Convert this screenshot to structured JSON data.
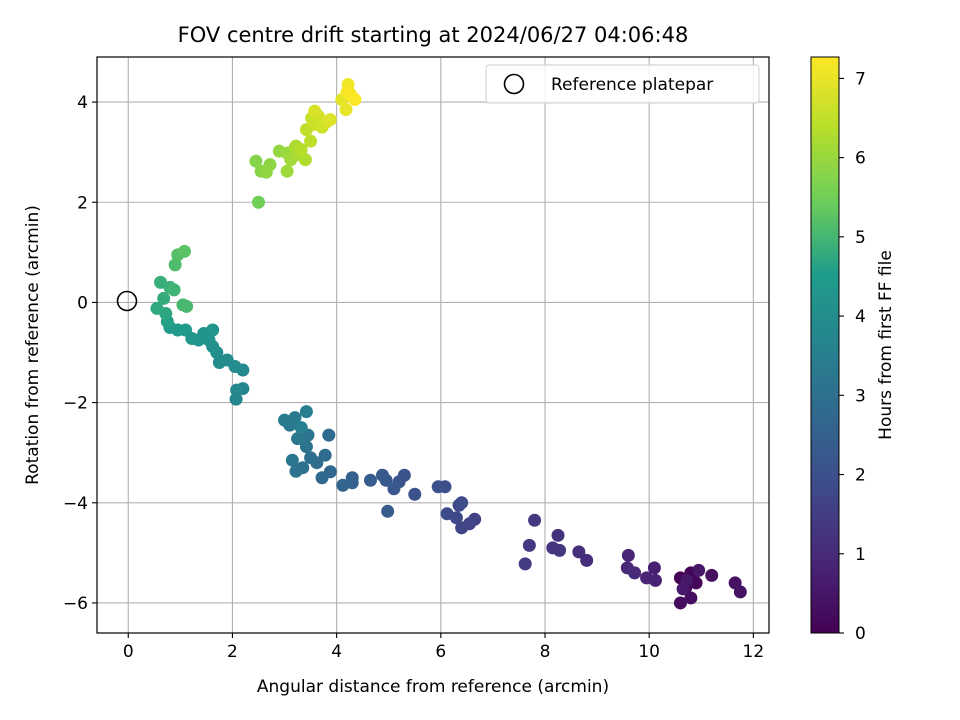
{
  "chart_data": {
    "type": "scatter",
    "title": "FOV centre drift starting at 2024/06/27 04:06:48",
    "xlabel": "Angular distance from reference (arcmin)",
    "ylabel": "Rotation from reference (arcmin)",
    "xlim": [
      -0.6,
      12.3
    ],
    "ylim": [
      -6.6,
      4.9
    ],
    "xticks": [
      0,
      2,
      4,
      6,
      8,
      10,
      12
    ],
    "yticks": [
      -6,
      -4,
      -2,
      0,
      2,
      4
    ],
    "xtick_labels": [
      "0",
      "2",
      "4",
      "6",
      "8",
      "10",
      "12"
    ],
    "ytick_labels": [
      "−6",
      "−4",
      "−2",
      "0",
      "2",
      "4"
    ],
    "grid": true,
    "legend": {
      "position": "top-right",
      "entries": [
        "Reference platepar"
      ]
    },
    "reference_point": {
      "x": 0,
      "y": 0,
      "label": "Reference platepar"
    },
    "colorbar": {
      "label": "Hours from first FF file",
      "range": [
        0,
        7.27
      ],
      "ticks": [
        0,
        1,
        2,
        3,
        4,
        5,
        6,
        7
      ],
      "tick_labels": [
        "0",
        "1",
        "2",
        "3",
        "4",
        "5",
        "6",
        "7"
      ],
      "colormap": "viridis"
    },
    "points": [
      [
        10.6,
        -5.5,
        0.05
      ],
      [
        10.8,
        -5.4,
        0.1
      ],
      [
        10.9,
        -5.6,
        0.15
      ],
      [
        10.7,
        -5.7,
        0.2
      ],
      [
        10.6,
        -6.0,
        0.25
      ],
      [
        10.8,
        -5.9,
        0.3
      ],
      [
        11.2,
        -5.45,
        0.35
      ],
      [
        11.65,
        -5.6,
        0.4
      ],
      [
        11.75,
        -5.78,
        0.45
      ],
      [
        10.95,
        -5.35,
        0.5
      ],
      [
        10.72,
        -5.55,
        0.55
      ],
      [
        10.65,
        -5.72,
        0.6
      ],
      [
        10.1,
        -5.3,
        0.75
      ],
      [
        10.12,
        -5.55,
        0.8
      ],
      [
        9.95,
        -5.5,
        0.85
      ],
      [
        9.6,
        -5.05,
        0.9
      ],
      [
        9.58,
        -5.3,
        0.95
      ],
      [
        9.72,
        -5.4,
        1.0
      ],
      [
        8.8,
        -5.15,
        1.1
      ],
      [
        8.65,
        -4.98,
        1.15
      ],
      [
        8.25,
        -4.65,
        1.2
      ],
      [
        8.15,
        -4.9,
        1.25
      ],
      [
        8.28,
        -4.95,
        1.3
      ],
      [
        7.8,
        -4.35,
        1.35
      ],
      [
        7.7,
        -4.85,
        1.4
      ],
      [
        7.62,
        -5.22,
        1.45
      ],
      [
        6.65,
        -4.33,
        1.6
      ],
      [
        6.55,
        -4.42,
        1.65
      ],
      [
        6.4,
        -4.5,
        1.7
      ],
      [
        6.35,
        -4.05,
        1.75
      ],
      [
        6.3,
        -4.3,
        1.8
      ],
      [
        6.12,
        -4.22,
        1.85
      ],
      [
        6.4,
        -4.0,
        1.9
      ],
      [
        6.08,
        -3.68,
        1.95
      ],
      [
        5.95,
        -3.68,
        2.0
      ],
      [
        5.5,
        -3.83,
        2.05
      ],
      [
        5.3,
        -3.45,
        2.1
      ],
      [
        5.2,
        -3.58,
        2.15
      ],
      [
        5.1,
        -3.72,
        2.2
      ],
      [
        4.95,
        -3.55,
        2.25
      ],
      [
        4.88,
        -3.45,
        2.3
      ],
      [
        4.98,
        -4.17,
        2.35
      ],
      [
        4.65,
        -3.55,
        2.4
      ],
      [
        4.3,
        -3.5,
        2.5
      ],
      [
        4.3,
        -3.6,
        2.55
      ],
      [
        4.12,
        -3.65,
        2.6
      ],
      [
        3.88,
        -3.38,
        2.7
      ],
      [
        3.72,
        -3.5,
        2.75
      ],
      [
        3.85,
        -2.65,
        2.8
      ],
      [
        3.62,
        -3.2,
        2.85
      ],
      [
        3.78,
        -3.05,
        2.9
      ],
      [
        3.5,
        -3.1,
        2.95
      ],
      [
        3.35,
        -3.3,
        3.0
      ],
      [
        3.22,
        -3.37,
        3.05
      ],
      [
        3.42,
        -2.88,
        3.1
      ],
      [
        3.45,
        -2.65,
        3.15
      ],
      [
        3.15,
        -3.15,
        3.2
      ],
      [
        3.25,
        -2.72,
        3.25
      ],
      [
        3.1,
        -2.45,
        3.3
      ],
      [
        3.2,
        -2.3,
        3.35
      ],
      [
        3.0,
        -2.35,
        3.4
      ],
      [
        3.42,
        -2.18,
        3.45
      ],
      [
        3.32,
        -2.5,
        3.5
      ],
      [
        2.2,
        -1.72,
        3.7
      ],
      [
        2.07,
        -1.93,
        3.75
      ],
      [
        2.08,
        -1.75,
        3.8
      ],
      [
        2.2,
        -1.35,
        3.85
      ],
      [
        2.05,
        -1.28,
        3.9
      ],
      [
        1.9,
        -1.15,
        3.95
      ],
      [
        1.75,
        -1.2,
        4.0
      ],
      [
        1.7,
        -1.0,
        4.05
      ],
      [
        1.62,
        -0.88,
        4.1
      ],
      [
        1.55,
        -0.75,
        4.15
      ],
      [
        1.45,
        -0.62,
        4.2
      ],
      [
        1.35,
        -0.75,
        4.25
      ],
      [
        1.62,
        -0.55,
        4.3
      ],
      [
        1.22,
        -0.72,
        4.35
      ],
      [
        1.1,
        -0.55,
        4.45
      ],
      [
        0.95,
        -0.55,
        4.5
      ],
      [
        0.8,
        -0.5,
        4.55
      ],
      [
        0.75,
        -0.38,
        4.6
      ],
      [
        0.72,
        -0.22,
        4.7
      ],
      [
        0.55,
        -0.12,
        4.75
      ],
      [
        0.68,
        0.08,
        4.8
      ],
      [
        0.62,
        0.4,
        4.85
      ],
      [
        0.8,
        0.3,
        4.9
      ],
      [
        0.88,
        0.25,
        4.95
      ],
      [
        1.05,
        -0.05,
        5.0
      ],
      [
        1.12,
        -0.08,
        5.05
      ],
      [
        0.9,
        0.75,
        5.1
      ],
      [
        0.95,
        0.95,
        5.2
      ],
      [
        1.08,
        1.02,
        5.25
      ],
      [
        2.5,
        2.0,
        5.5
      ],
      [
        2.45,
        2.82,
        5.75
      ],
      [
        2.55,
        2.62,
        5.8
      ],
      [
        2.72,
        2.75,
        5.85
      ],
      [
        2.65,
        2.6,
        5.9
      ],
      [
        2.9,
        3.02,
        5.95
      ],
      [
        3.05,
        2.98,
        6.0
      ],
      [
        3.05,
        2.62,
        6.05
      ],
      [
        3.12,
        2.85,
        6.1
      ],
      [
        3.2,
        3.08,
        6.15
      ],
      [
        3.28,
        2.95,
        6.2
      ],
      [
        3.22,
        3.12,
        6.25
      ],
      [
        3.4,
        2.85,
        6.3
      ],
      [
        3.32,
        3.05,
        6.35
      ],
      [
        3.5,
        3.22,
        6.45
      ],
      [
        3.42,
        3.45,
        6.5
      ],
      [
        3.52,
        3.68,
        6.55
      ],
      [
        3.55,
        3.55,
        6.6
      ],
      [
        3.72,
        3.5,
        6.65
      ],
      [
        3.65,
        3.72,
        6.7
      ],
      [
        3.8,
        3.6,
        6.75
      ],
      [
        3.58,
        3.82,
        6.8
      ],
      [
        3.88,
        3.65,
        6.85
      ],
      [
        4.1,
        4.05,
        6.95
      ],
      [
        4.18,
        3.85,
        7.0
      ],
      [
        4.25,
        4.18,
        7.05
      ],
      [
        4.22,
        4.35,
        7.1
      ],
      [
        4.3,
        4.1,
        7.15
      ],
      [
        4.2,
        4.2,
        7.2
      ],
      [
        4.35,
        4.05,
        7.25
      ]
    ]
  }
}
